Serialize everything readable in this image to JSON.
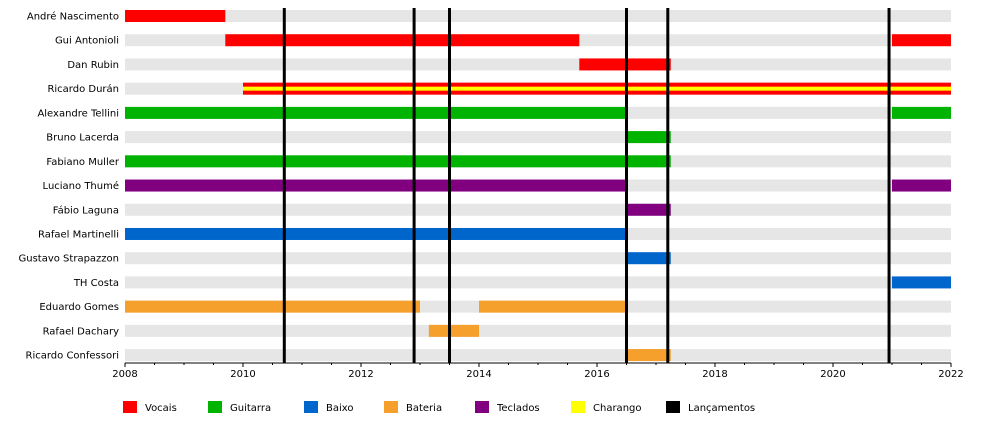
{
  "chart_data": {
    "type": "bar",
    "x_range": [
      2008,
      2022
    ],
    "x_ticks": [
      "2008",
      "2010",
      "2012",
      "2014",
      "2016",
      "2018",
      "2020",
      "2022"
    ],
    "grid": "row-bands",
    "legend_position": "bottom",
    "categories": [
      "André Nascimento",
      "Gui Antonioli",
      "Dan Rubin",
      "Ricardo Durán",
      "Alexandre Tellini",
      "Bruno Lacerda",
      "Fabiano Muller",
      "Luciano Thumé",
      "Fábio Laguna",
      "Rafael Martinelli",
      "Gustavo Strapazzon",
      "TH Costa",
      "Eduardo Gomes",
      "Rafael Dachary",
      "Ricardo Confessori"
    ],
    "roles": [
      {
        "key": "vocais",
        "label": "Vocais",
        "color": "#ff0000"
      },
      {
        "key": "guitarra",
        "label": "Guitarra",
        "color": "#00b300"
      },
      {
        "key": "baixo",
        "label": "Baixo",
        "color": "#0066cc"
      },
      {
        "key": "bateria",
        "label": "Bateria",
        "color": "#f5a02c"
      },
      {
        "key": "teclados",
        "label": "Teclados",
        "color": "#800080"
      },
      {
        "key": "charango",
        "label": "Charango",
        "color": "#ffff00"
      },
      {
        "key": "lancamentos",
        "label": "Lançamentos",
        "color": "#000000"
      }
    ],
    "periods": [
      {
        "member": "André Nascimento",
        "role": "vocais",
        "start": 2008.0,
        "end": 2009.7
      },
      {
        "member": "Gui Antonioli",
        "role": "vocais",
        "start": 2009.7,
        "end": 2015.7
      },
      {
        "member": "Gui Antonioli",
        "role": "vocais",
        "start": 2021.0,
        "end": 2022.0
      },
      {
        "member": "Dan Rubin",
        "role": "vocais",
        "start": 2015.7,
        "end": 2017.25
      },
      {
        "member": "Ricardo Durán",
        "role": "vocais",
        "start": 2010.0,
        "end": 2022.0,
        "secondary": "charango"
      },
      {
        "member": "Alexandre Tellini",
        "role": "guitarra",
        "start": 2008.0,
        "end": 2016.5
      },
      {
        "member": "Alexandre Tellini",
        "role": "guitarra",
        "start": 2021.0,
        "end": 2022.0
      },
      {
        "member": "Bruno Lacerda",
        "role": "guitarra",
        "start": 2016.5,
        "end": 2017.25
      },
      {
        "member": "Fabiano Muller",
        "role": "guitarra",
        "start": 2008.0,
        "end": 2017.25
      },
      {
        "member": "Luciano Thumé",
        "role": "teclados",
        "start": 2008.0,
        "end": 2016.5
      },
      {
        "member": "Luciano Thumé",
        "role": "teclados",
        "start": 2021.0,
        "end": 2022.0
      },
      {
        "member": "Fábio Laguna",
        "role": "teclados",
        "start": 2016.5,
        "end": 2017.25
      },
      {
        "member": "Rafael Martinelli",
        "role": "baixo",
        "start": 2008.0,
        "end": 2016.5
      },
      {
        "member": "Gustavo Strapazzon",
        "role": "baixo",
        "start": 2016.5,
        "end": 2017.25
      },
      {
        "member": "TH Costa",
        "role": "baixo",
        "start": 2021.0,
        "end": 2022.0
      },
      {
        "member": "Eduardo Gomes",
        "role": "bateria",
        "start": 2008.0,
        "end": 2013.0
      },
      {
        "member": "Eduardo Gomes",
        "role": "bateria",
        "start": 2014.0,
        "end": 2016.5
      },
      {
        "member": "Rafael Dachary",
        "role": "bateria",
        "start": 2013.15,
        "end": 2014.0
      },
      {
        "member": "Ricardo Confessori",
        "role": "bateria",
        "start": 2016.5,
        "end": 2017.25
      }
    ],
    "releases": [
      2010.7,
      2012.9,
      2013.5,
      2016.5,
      2017.2,
      2020.95
    ]
  }
}
